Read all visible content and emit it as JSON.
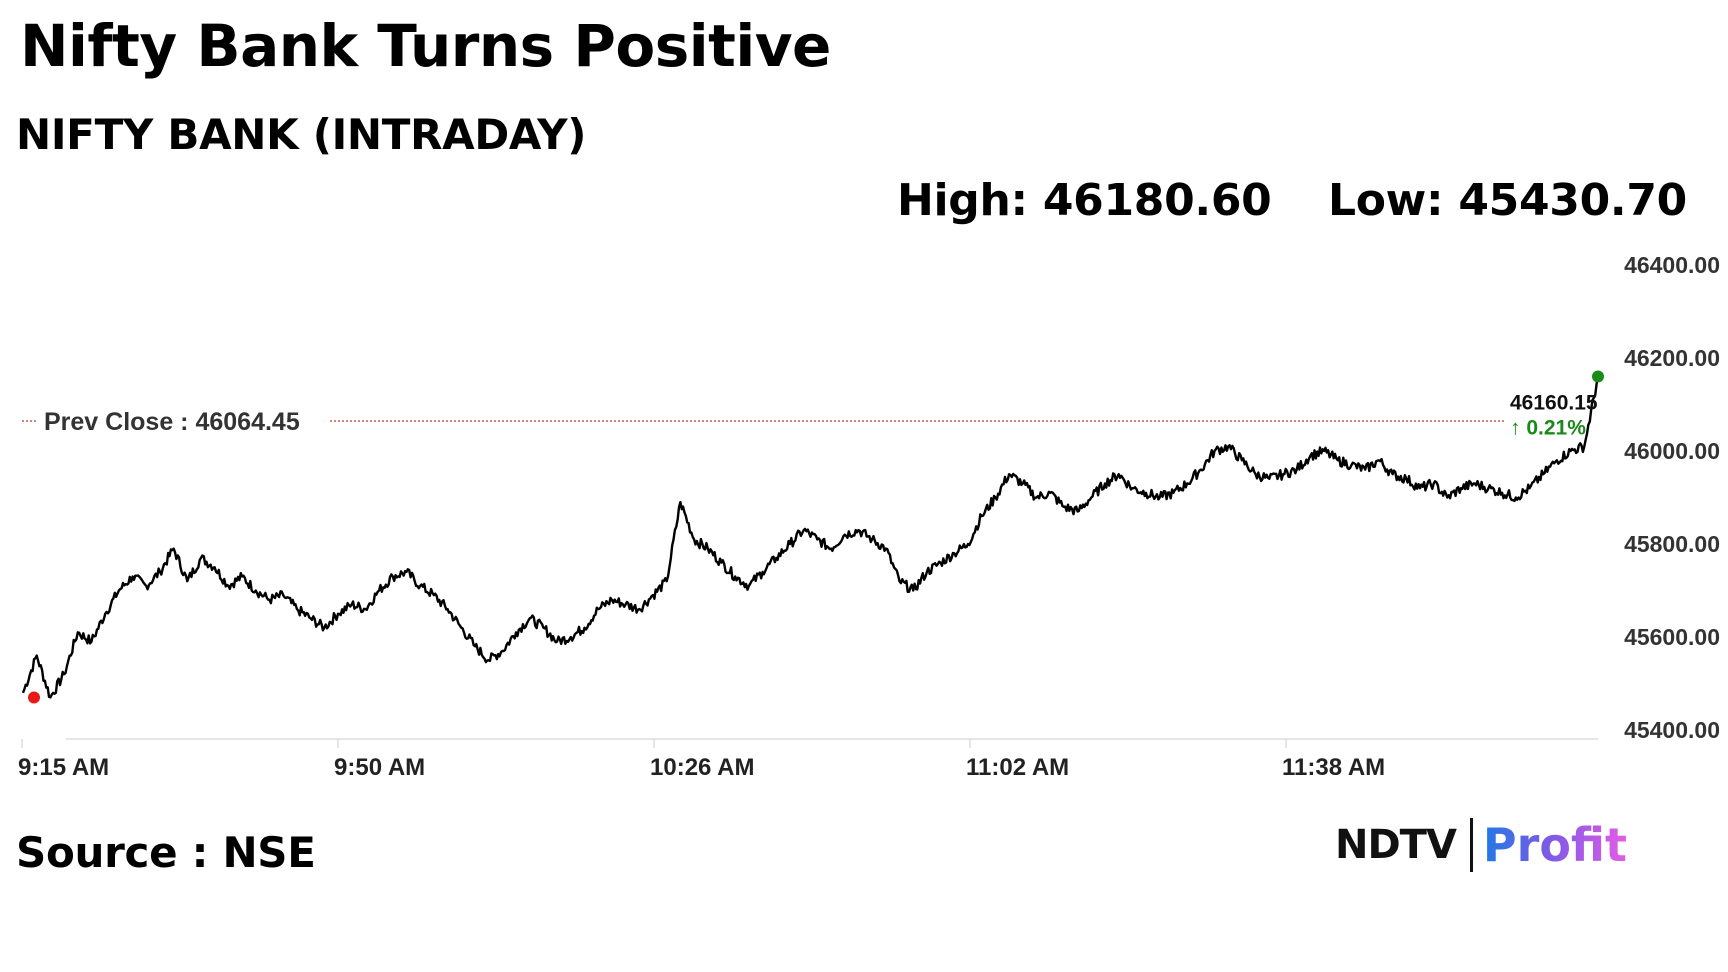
{
  "header": {
    "title": "Nifty Bank Turns Positive",
    "subtitle": "NIFTY BANK (INTRADAY)"
  },
  "stats": {
    "high": "High: 46180.60",
    "low": "Low: 45430.70"
  },
  "footer": {
    "source": "Source : NSE",
    "logo_left": "NDTV",
    "logo_right": "Profit"
  },
  "colors": {
    "line": "#000000",
    "prev_close_line": "#c0392b",
    "start_marker": "#e81919",
    "end_marker": "#1a8a1a",
    "change_text": "#1a8a1a"
  },
  "chart_data": {
    "type": "line",
    "xlabel": "",
    "ylabel": "",
    "ylim": [
      45400,
      46400
    ],
    "y_ticks": [
      "45400.00",
      "45600.00",
      "45800.00",
      "46000.00",
      "46200.00",
      "46400.00"
    ],
    "x_ticks": [
      "9:15 AM",
      "9:50 AM",
      "10:26 AM",
      "11:02 AM",
      "11:38 AM"
    ],
    "prev_close_label": "Prev Close : 46064.45",
    "prev_close_value": 46064.45,
    "last_value_label": "46160.15",
    "last_change_label": "↑ 0.21%",
    "last_value": 46160.15,
    "grid": false,
    "series": [
      {
        "values": [
          45480,
          45560,
          45470,
          45520,
          45610,
          45590,
          45650,
          45700,
          45730,
          45710,
          45740,
          45790,
          45720,
          45770,
          45750,
          45710,
          45730,
          45700,
          45680,
          45690,
          45660,
          45640,
          45620,
          45650,
          45670,
          45660,
          45700,
          45730,
          45740,
          45710,
          45690,
          45660,
          45620,
          45580,
          45550,
          45570,
          45610,
          45640,
          45620,
          45590,
          45600,
          45620,
          45660,
          45680,
          45670,
          45660,
          45690,
          45720,
          45890,
          45810,
          45790,
          45760,
          45730,
          45710,
          45740,
          45770,
          45800,
          45830,
          45810,
          45790,
          45820,
          45830,
          45810,
          45790,
          45720,
          45700,
          45740,
          45760,
          45780,
          45800,
          45860,
          45900,
          45950,
          45930,
          45900,
          45910,
          45880,
          45870,
          45900,
          45930,
          45950,
          45920,
          45910,
          45900,
          45910,
          45930,
          45960,
          46000,
          46010,
          45980,
          45950,
          45940,
          45950,
          45960,
          45990,
          46000,
          45980,
          45970,
          45960,
          45980,
          45950,
          45940,
          45920,
          45930,
          45900,
          45920,
          45930,
          45920,
          45910,
          45900,
          45920,
          45950,
          45980,
          46000,
          46010,
          46160
        ]
      }
    ]
  }
}
